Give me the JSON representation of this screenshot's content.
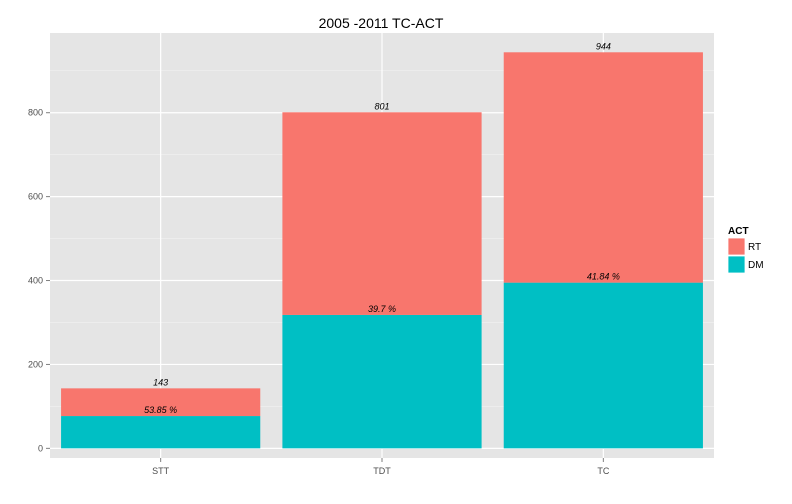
{
  "chart_data": {
    "type": "bar",
    "stacked": true,
    "title": "2005 -2011 TC-ACT",
    "xlabel": "",
    "ylabel": "",
    "categories": [
      "STT",
      "TDT",
      "TC"
    ],
    "series": [
      {
        "name": "DM",
        "values": [
          77,
          318,
          395
        ],
        "color": "#00bfc4"
      },
      {
        "name": "RT",
        "values": [
          66,
          483,
          549
        ],
        "color": "#f8766d"
      }
    ],
    "totals": [
      143,
      801,
      944
    ],
    "total_labels": [
      "143",
      "801",
      "944"
    ],
    "dm_percent_labels": [
      "53.85 %",
      "39.7 %",
      "41.84 %"
    ],
    "ylim": [
      -23,
      990
    ],
    "yticks": [
      0,
      200,
      400,
      600,
      800
    ],
    "ytick_labels": [
      "0",
      "200",
      "400",
      "600",
      "800"
    ],
    "grid": true,
    "panel_background": "#e5e5e5",
    "grid_color": "#ffffff",
    "legend": {
      "title": "ACT",
      "position": "right",
      "entries": [
        {
          "label": "RT",
          "color": "#f8766d"
        },
        {
          "label": "DM",
          "color": "#00bfc4"
        }
      ]
    }
  }
}
